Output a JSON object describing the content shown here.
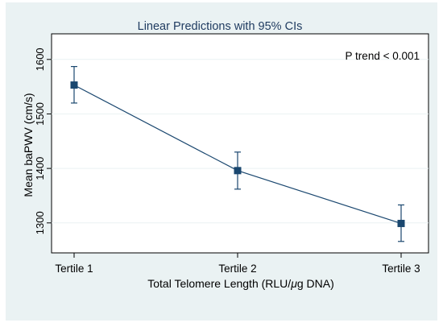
{
  "chart_data": {
    "type": "line",
    "title": "Linear Predictions with 95% CIs",
    "xlabel_main": "Total Telomere Length (RLU/",
    "xlabel_mu": "μ",
    "xlabel_rest": "g DNA)",
    "ylabel": "Mean baPWV (cm/s)",
    "annotation": "P trend < 0.001",
    "categories": [
      "Tertile 1",
      "Tertile 2",
      "Tertile 3"
    ],
    "series": [
      {
        "values": [
          1553,
          1396,
          1299
        ],
        "ci_lower": [
          1520,
          1362,
          1266
        ],
        "ci_upper": [
          1587,
          1430,
          1333
        ]
      }
    ],
    "yticks": [
      1300,
      1400,
      1500,
      1600
    ],
    "ylim": [
      1245,
      1647
    ],
    "grid": true,
    "colors": {
      "plot_bg": "#eaf2f3",
      "outer_bg": "#ffffff",
      "line": "#1a476f",
      "title": "#1e3a5f"
    }
  }
}
